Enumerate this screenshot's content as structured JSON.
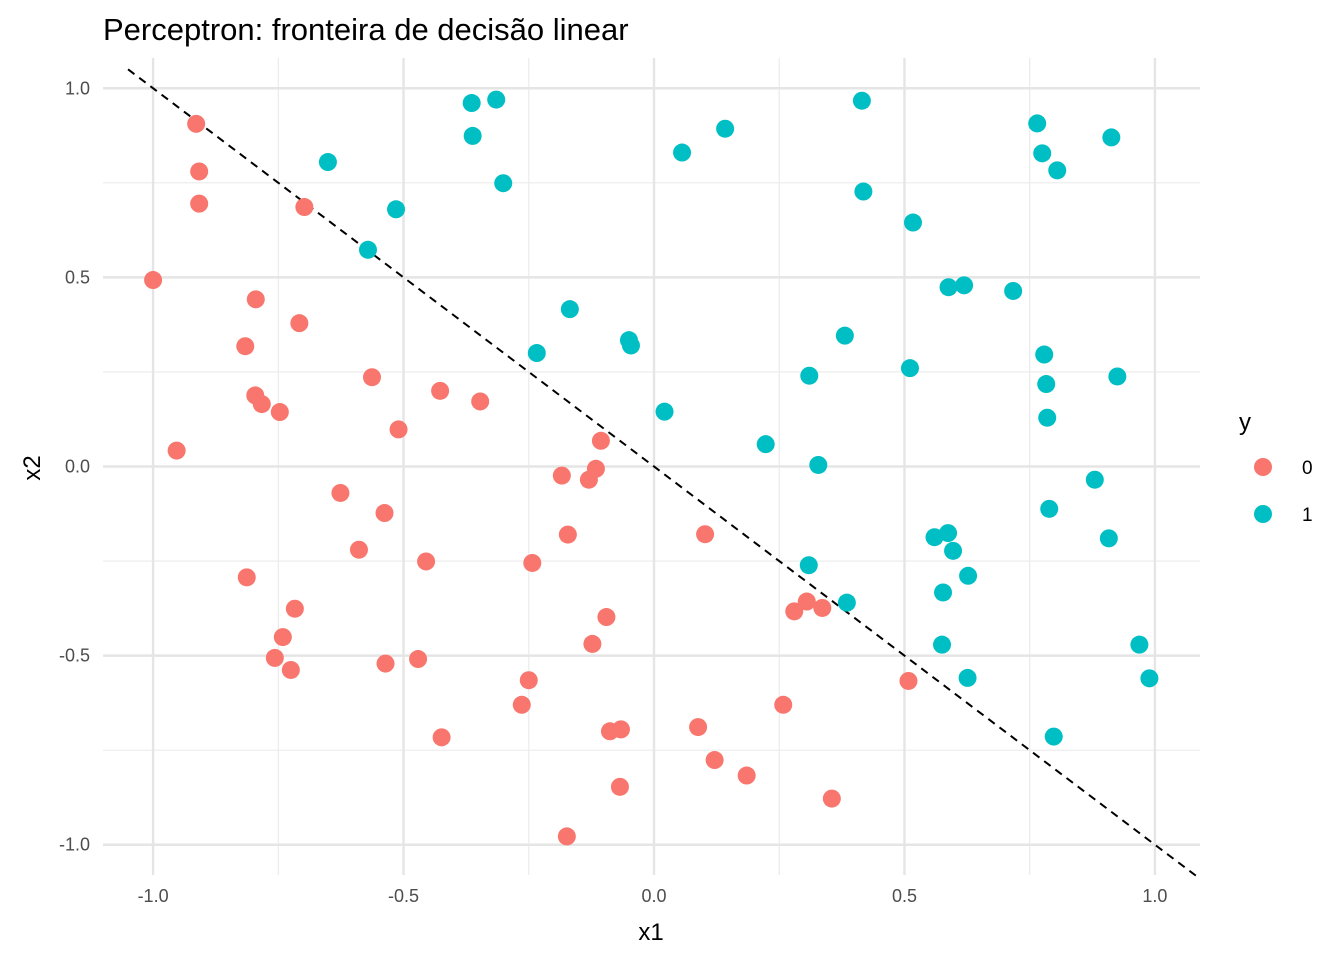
{
  "chart_data": {
    "type": "scatter",
    "title": "Perceptron: fronteira de decisão linear",
    "xlabel": "x1",
    "ylabel": "x2",
    "xlim": [
      -1.1,
      1.09
    ],
    "ylim": [
      -1.08,
      1.08
    ],
    "x_ticks": [
      -1.0,
      -0.5,
      0.0,
      0.5,
      1.0
    ],
    "x_tick_labels": [
      "-1.0",
      "-0.5",
      "0.0",
      "0.5",
      "1.0"
    ],
    "y_ticks": [
      -1.0,
      -0.5,
      0.0,
      0.5,
      1.0
    ],
    "y_tick_labels": [
      "-1.0",
      "-0.5",
      "0.0",
      "0.5",
      "1.0"
    ],
    "grid": true,
    "legend": {
      "title": "y",
      "position": "right"
    },
    "decision_boundary": {
      "type": "line",
      "style": "dashed",
      "color": "#000000",
      "slope": -1.0,
      "intercept": 0.0
    },
    "series": [
      {
        "name": "0",
        "color": "#F8766D",
        "points": [
          [
            -0.914,
            0.906
          ],
          [
            -0.908,
            0.78
          ],
          [
            -0.908,
            0.695
          ],
          [
            -0.698,
            0.686
          ],
          [
            -1.0,
            0.493
          ],
          [
            -0.795,
            0.442
          ],
          [
            -0.708,
            0.379
          ],
          [
            -0.816,
            0.318
          ],
          [
            -0.563,
            0.236
          ],
          [
            -0.796,
            0.188
          ],
          [
            -0.783,
            0.165
          ],
          [
            -0.747,
            0.144
          ],
          [
            -0.427,
            0.2
          ],
          [
            -0.347,
            0.172
          ],
          [
            -0.51,
            0.098
          ],
          [
            -0.953,
            0.042
          ],
          [
            -0.106,
            0.068
          ],
          [
            -0.116,
            -0.006
          ],
          [
            -0.184,
            -0.024
          ],
          [
            -0.13,
            -0.035
          ],
          [
            -0.626,
            -0.07
          ],
          [
            -0.538,
            -0.123
          ],
          [
            -0.172,
            -0.18
          ],
          [
            -0.589,
            -0.22
          ],
          [
            -0.455,
            -0.251
          ],
          [
            -0.243,
            -0.255
          ],
          [
            0.102,
            -0.179
          ],
          [
            -0.813,
            -0.293
          ],
          [
            -0.717,
            -0.376
          ],
          [
            0.28,
            -0.383
          ],
          [
            0.305,
            -0.357
          ],
          [
            0.336,
            -0.374
          ],
          [
            -0.095,
            -0.398
          ],
          [
            -0.741,
            -0.451
          ],
          [
            -0.123,
            -0.469
          ],
          [
            -0.757,
            -0.506
          ],
          [
            -0.536,
            -0.521
          ],
          [
            -0.471,
            -0.509
          ],
          [
            -0.725,
            -0.538
          ],
          [
            -0.25,
            -0.565
          ],
          [
            0.508,
            -0.567
          ],
          [
            -0.264,
            -0.63
          ],
          [
            0.258,
            -0.63
          ],
          [
            0.088,
            -0.689
          ],
          [
            -0.066,
            -0.695
          ],
          [
            -0.088,
            -0.7
          ],
          [
            -0.424,
            -0.716
          ],
          [
            0.121,
            -0.776
          ],
          [
            0.185,
            -0.817
          ],
          [
            -0.068,
            -0.847
          ],
          [
            0.355,
            -0.878
          ],
          [
            -0.174,
            -0.978
          ]
        ]
      },
      {
        "name": "1",
        "color": "#00BFC4",
        "points": [
          [
            -0.364,
            0.961
          ],
          [
            -0.315,
            0.97
          ],
          [
            -0.362,
            0.874
          ],
          [
            0.415,
            0.967
          ],
          [
            0.142,
            0.893
          ],
          [
            0.056,
            0.83
          ],
          [
            -0.651,
            0.805
          ],
          [
            0.765,
            0.907
          ],
          [
            0.913,
            0.87
          ],
          [
            0.775,
            0.828
          ],
          [
            0.805,
            0.783
          ],
          [
            -0.301,
            0.749
          ],
          [
            0.418,
            0.727
          ],
          [
            -0.515,
            0.68
          ],
          [
            0.517,
            0.645
          ],
          [
            -0.571,
            0.573
          ],
          [
            0.588,
            0.474
          ],
          [
            0.619,
            0.479
          ],
          [
            0.717,
            0.464
          ],
          [
            -0.168,
            0.416
          ],
          [
            0.381,
            0.346
          ],
          [
            -0.05,
            0.334
          ],
          [
            -0.046,
            0.32
          ],
          [
            -0.234,
            0.3
          ],
          [
            0.779,
            0.296
          ],
          [
            0.31,
            0.24
          ],
          [
            0.511,
            0.26
          ],
          [
            0.925,
            0.238
          ],
          [
            0.783,
            0.218
          ],
          [
            0.785,
            0.129
          ],
          [
            0.021,
            0.145
          ],
          [
            0.223,
            0.059
          ],
          [
            0.328,
            0.004
          ],
          [
            0.88,
            -0.035
          ],
          [
            0.789,
            -0.112
          ],
          [
            0.56,
            -0.187
          ],
          [
            0.587,
            -0.176
          ],
          [
            0.908,
            -0.19
          ],
          [
            0.597,
            -0.223
          ],
          [
            0.309,
            -0.261
          ],
          [
            0.627,
            -0.289
          ],
          [
            0.385,
            -0.36
          ],
          [
            0.577,
            -0.333
          ],
          [
            0.575,
            -0.471
          ],
          [
            0.969,
            -0.471
          ],
          [
            0.626,
            -0.559
          ],
          [
            0.989,
            -0.56
          ],
          [
            0.798,
            -0.714
          ]
        ]
      }
    ]
  }
}
